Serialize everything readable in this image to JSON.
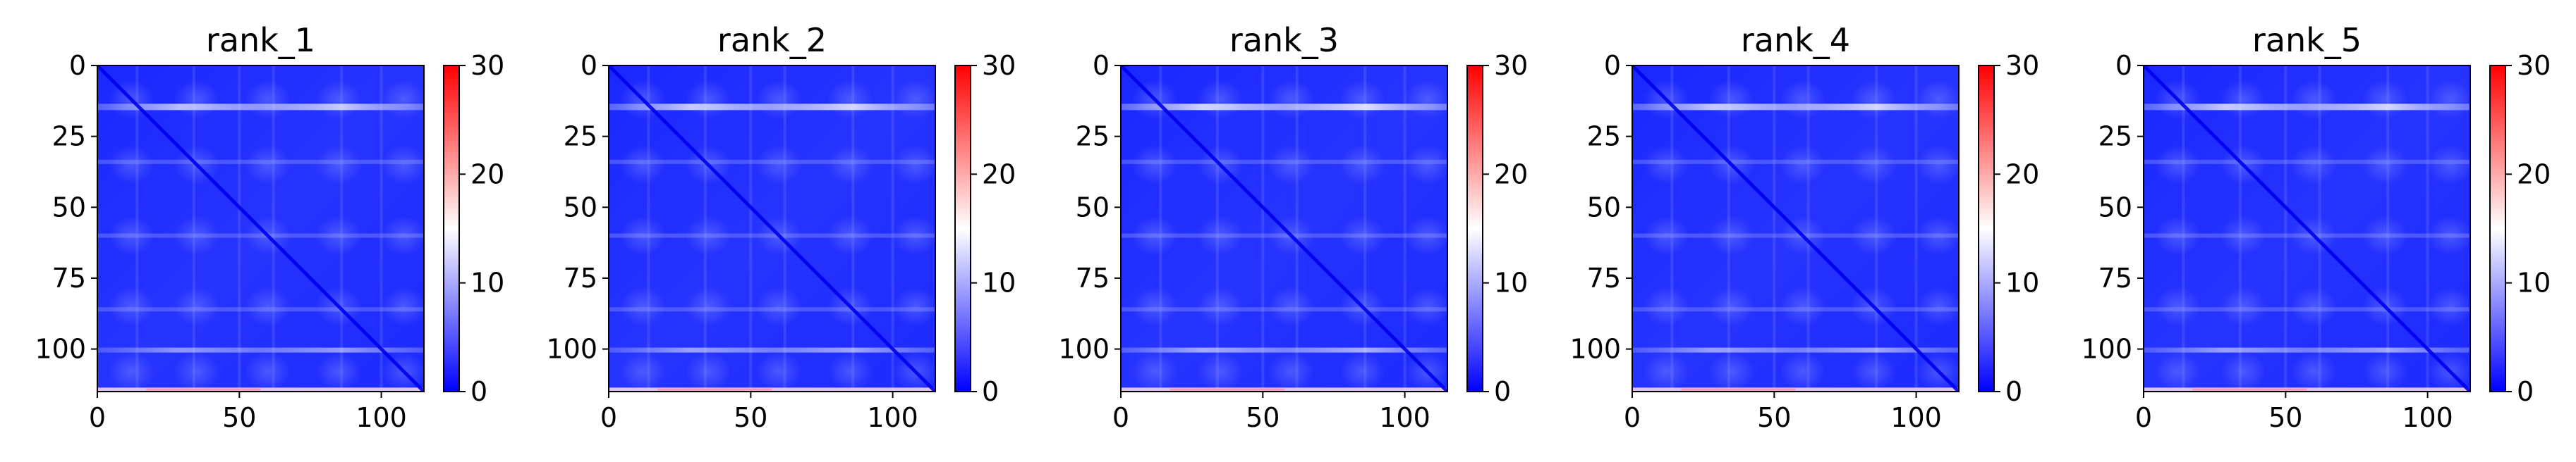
{
  "chart_data": [
    {
      "type": "heatmap",
      "title": "rank_1",
      "xlim": [
        0,
        115
      ],
      "ylim": [
        115,
        0
      ],
      "xticks": [
        "0",
        "50",
        "100"
      ],
      "yticks": [
        "0",
        "25",
        "50",
        "75",
        "100"
      ],
      "colorbar": {
        "colormap": "bwr",
        "range": [
          0,
          30
        ],
        "ticks": [
          "0",
          "10",
          "20",
          "30"
        ]
      },
      "description_values": {
        "background": 2,
        "stripes_rows": [
          15,
          100,
          114
        ],
        "stripe_value": 11,
        "diagonal_value": 0
      }
    },
    {
      "type": "heatmap",
      "title": "rank_2",
      "xlim": [
        0,
        115
      ],
      "ylim": [
        115,
        0
      ],
      "xticks": [
        "0",
        "50",
        "100"
      ],
      "yticks": [
        "0",
        "25",
        "50",
        "75",
        "100"
      ],
      "colorbar": {
        "colormap": "bwr",
        "range": [
          0,
          30
        ],
        "ticks": [
          "0",
          "10",
          "20",
          "30"
        ]
      },
      "description_values": {
        "background": 2,
        "stripes_rows": [
          15,
          100,
          114
        ],
        "stripe_value": 12,
        "diagonal_value": 0
      }
    },
    {
      "type": "heatmap",
      "title": "rank_3",
      "xlim": [
        0,
        115
      ],
      "ylim": [
        115,
        0
      ],
      "xticks": [
        "0",
        "50",
        "100"
      ],
      "yticks": [
        "0",
        "25",
        "50",
        "75",
        "100"
      ],
      "colorbar": {
        "colormap": "bwr",
        "range": [
          0,
          30
        ],
        "ticks": [
          "0",
          "10",
          "20",
          "30"
        ]
      },
      "description_values": {
        "background": 2,
        "stripes_rows": [
          15,
          100,
          114
        ],
        "stripe_value": 13,
        "diagonal_value": 0
      }
    },
    {
      "type": "heatmap",
      "title": "rank_4",
      "xlim": [
        0,
        115
      ],
      "ylim": [
        115,
        0
      ],
      "xticks": [
        "0",
        "50",
        "100"
      ],
      "yticks": [
        "0",
        "25",
        "50",
        "75",
        "100"
      ],
      "colorbar": {
        "colormap": "bwr",
        "range": [
          0,
          30
        ],
        "ticks": [
          "0",
          "10",
          "20",
          "30"
        ]
      },
      "description_values": {
        "background": 2,
        "stripes_rows": [
          15,
          100,
          114
        ],
        "stripe_value": 12,
        "diagonal_value": 0
      }
    },
    {
      "type": "heatmap",
      "title": "rank_5",
      "xlim": [
        0,
        115
      ],
      "ylim": [
        115,
        0
      ],
      "xticks": [
        "0",
        "50",
        "100"
      ],
      "yticks": [
        "0",
        "25",
        "50",
        "75",
        "100"
      ],
      "colorbar": {
        "colormap": "bwr",
        "range": [
          0,
          30
        ],
        "ticks": [
          "0",
          "10",
          "20",
          "30"
        ]
      },
      "description_values": {
        "background": 2,
        "stripes_rows": [
          15,
          100,
          114
        ],
        "stripe_value": 12,
        "diagonal_value": 0
      }
    }
  ],
  "colors": {
    "low": "#0000ff",
    "mid": "#ffffff",
    "high": "#ff0000",
    "axis": "#000000"
  }
}
